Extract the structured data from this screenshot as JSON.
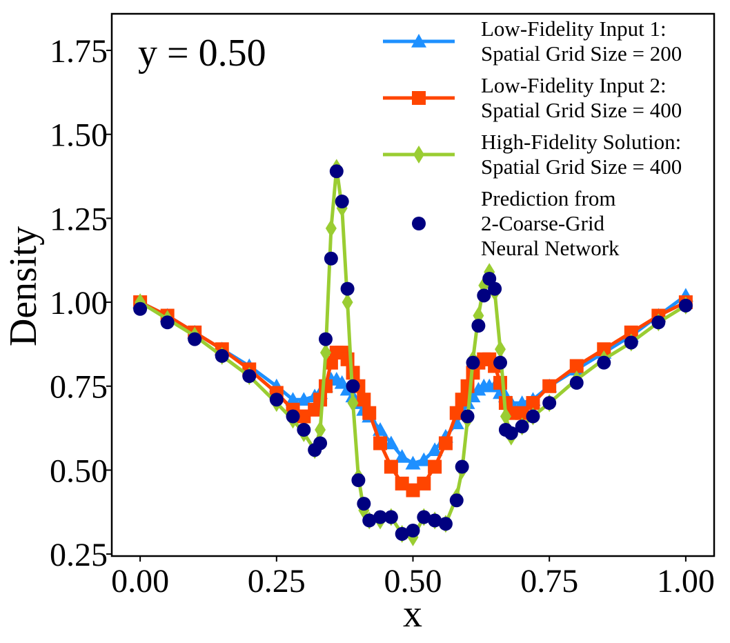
{
  "chart_data": {
    "type": "line",
    "annotation": "y = 0.50",
    "x_label": "x",
    "y_label": "Density",
    "x": [
      0,
      0.05,
      0.1,
      0.15,
      0.2,
      0.25,
      0.28,
      0.3,
      0.32,
      0.33,
      0.34,
      0.35,
      0.36,
      0.37,
      0.38,
      0.39,
      0.4,
      0.41,
      0.42,
      0.44,
      0.46,
      0.48,
      0.5,
      0.52,
      0.54,
      0.56,
      0.58,
      0.59,
      0.6,
      0.61,
      0.62,
      0.63,
      0.64,
      0.65,
      0.66,
      0.67,
      0.68,
      0.7,
      0.72,
      0.75,
      0.8,
      0.85,
      0.9,
      0.95,
      1.0
    ],
    "series": [
      {
        "name": "Low-Fidelity Input 1:\nSpatial Grid Size = 200",
        "color": "#1e90ff",
        "marker": "triangle",
        "line": true,
        "values": [
          1.0,
          0.96,
          0.91,
          0.86,
          0.81,
          0.75,
          0.71,
          0.71,
          0.72,
          0.73,
          0.75,
          0.77,
          0.77,
          0.76,
          0.74,
          0.72,
          0.7,
          0.68,
          0.66,
          0.62,
          0.58,
          0.54,
          0.52,
          0.53,
          0.56,
          0.6,
          0.64,
          0.67,
          0.7,
          0.72,
          0.74,
          0.75,
          0.75,
          0.75,
          0.73,
          0.72,
          0.7,
          0.7,
          0.71,
          0.75,
          0.8,
          0.85,
          0.9,
          0.96,
          1.02
        ]
      },
      {
        "name": "Low-Fidelity Input 2:\nSpatial Grid Size = 400",
        "color": "#ff4500",
        "marker": "square",
        "line": true,
        "values": [
          1.0,
          0.96,
          0.91,
          0.86,
          0.8,
          0.73,
          0.68,
          0.66,
          0.68,
          0.71,
          0.75,
          0.82,
          0.85,
          0.85,
          0.83,
          0.79,
          0.75,
          0.71,
          0.67,
          0.58,
          0.51,
          0.46,
          0.44,
          0.46,
          0.51,
          0.58,
          0.67,
          0.71,
          0.75,
          0.79,
          0.82,
          0.83,
          0.83,
          0.81,
          0.76,
          0.7,
          0.67,
          0.67,
          0.7,
          0.75,
          0.81,
          0.86,
          0.91,
          0.96,
          1.0
        ]
      },
      {
        "name": "High-Fidelity Solution:\nSpatial Grid Size = 400",
        "color": "#9acd32",
        "marker": "diamond",
        "line": true,
        "values": [
          1.0,
          0.95,
          0.9,
          0.84,
          0.78,
          0.7,
          0.65,
          0.61,
          0.56,
          0.62,
          0.85,
          1.22,
          1.4,
          1.28,
          1.0,
          0.7,
          0.48,
          0.38,
          0.35,
          0.35,
          0.36,
          0.31,
          0.3,
          0.36,
          0.35,
          0.34,
          0.42,
          0.5,
          0.65,
          0.83,
          0.96,
          1.05,
          1.09,
          1.03,
          0.86,
          0.66,
          0.6,
          0.63,
          0.66,
          0.7,
          0.77,
          0.83,
          0.88,
          0.94,
          0.99
        ]
      },
      {
        "name": "Prediction from\n2-Coarse-Grid\nNeural Network",
        "color": "#000080",
        "marker": "circle",
        "line": false,
        "values": [
          0.98,
          0.94,
          0.89,
          0.84,
          0.78,
          0.71,
          0.66,
          0.62,
          0.56,
          0.58,
          0.89,
          1.13,
          1.39,
          1.3,
          1.04,
          0.75,
          0.47,
          0.4,
          0.35,
          0.36,
          0.36,
          0.31,
          0.32,
          0.36,
          0.35,
          0.34,
          0.41,
          0.51,
          0.66,
          0.82,
          0.93,
          1.02,
          1.07,
          1.04,
          0.82,
          0.62,
          0.61,
          0.63,
          0.66,
          0.7,
          0.76,
          0.82,
          0.88,
          0.94,
          0.99
        ]
      }
    ],
    "xlim": [
      -0.052,
      1.052
    ],
    "ylim": [
      0.244,
      1.859
    ],
    "xticks": [
      {
        "value": 0,
        "label": "0.00"
      },
      {
        "value": 0.25,
        "label": "0.25"
      },
      {
        "value": 0.5,
        "label": "0.50"
      },
      {
        "value": 0.75,
        "label": "0.75"
      },
      {
        "value": 1,
        "label": "1.00"
      }
    ],
    "yticks": [
      {
        "value": 0.25,
        "label": "0.25"
      },
      {
        "value": 0.5,
        "label": "0.50"
      },
      {
        "value": 0.75,
        "label": "0.75"
      },
      {
        "value": 1,
        "label": "1.00"
      },
      {
        "value": 1.25,
        "label": "1.25"
      },
      {
        "value": 1.5,
        "label": "1.50"
      },
      {
        "value": 1.75,
        "label": "1.75"
      }
    ],
    "grid": false,
    "legend": "upper right"
  }
}
